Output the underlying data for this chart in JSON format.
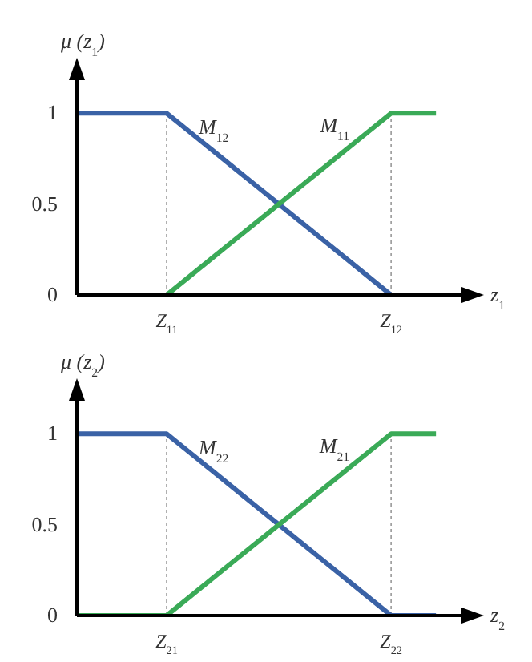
{
  "chart_data": [
    {
      "type": "line",
      "ylabel": "μ (z$_{1}$)",
      "xlabel": "z$_{1}$",
      "categories": [
        null,
        null,
        null,
        null,
        "Z$_{11}$",
        null,
        null,
        null,
        null,
        null,
        null,
        null,
        null,
        null,
        "Z$_{12}$",
        null,
        null
      ],
      "ylim": [
        0,
        1.2
      ],
      "yticks": [
        0,
        0.5,
        1
      ],
      "grid": false,
      "legend": false,
      "marker": "none",
      "line_style": "solid",
      "series": [
        {
          "name": "M$_{12}$",
          "color": "#3a62a6",
          "values": [
            1,
            1,
            1,
            1,
            1,
            0.9,
            0.8,
            0.7,
            0.6,
            0.5,
            0.4,
            0.3,
            0.2,
            0.1,
            0,
            0,
            0
          ]
        },
        {
          "name": "M$_{11}$",
          "color": "#3aaa57",
          "values": [
            0,
            0,
            0,
            0,
            0,
            0.1,
            0.2,
            0.3,
            0.4,
            0.5,
            0.6,
            0.7,
            0.8,
            0.9,
            1,
            1,
            1
          ]
        }
      ],
      "ref_lines": [
        {
          "axis": "x",
          "value": "Z$_{11}$",
          "color": "#999999",
          "line_style": "dotted"
        },
        {
          "axis": "x",
          "value": "Z$_{12}$",
          "color": "#999999",
          "line_style": "dotted"
        }
      ]
    },
    {
      "type": "line",
      "ylabel": "μ (z$_{2}$)",
      "xlabel": "z$_{2}$",
      "categories": [
        null,
        null,
        null,
        null,
        "Z$_{21}$",
        null,
        null,
        null,
        null,
        null,
        null,
        null,
        null,
        null,
        "Z$_{22}$",
        null,
        null
      ],
      "ylim": [
        0,
        1.2
      ],
      "yticks": [
        0,
        0.5,
        1
      ],
      "grid": false,
      "legend": false,
      "marker": "none",
      "line_style": "solid",
      "series": [
        {
          "name": "M$_{22}$",
          "color": "#3a62a6",
          "values": [
            1,
            1,
            1,
            1,
            1,
            0.9,
            0.8,
            0.7,
            0.6,
            0.5,
            0.4,
            0.3,
            0.2,
            0.1,
            0,
            0,
            0
          ]
        },
        {
          "name": "M$_{21}$",
          "color": "#3aaa57",
          "values": [
            0,
            0,
            0,
            0,
            0,
            0.1,
            0.2,
            0.3,
            0.4,
            0.5,
            0.6,
            0.7,
            0.8,
            0.9,
            1,
            1,
            1
          ]
        }
      ],
      "ref_lines": [
        {
          "axis": "x",
          "value": "Z$_{21}$",
          "color": "#999999",
          "line_style": "dotted"
        },
        {
          "axis": "x",
          "value": "Z$_{22}$",
          "color": "#999999",
          "line_style": "dotted"
        }
      ]
    }
  ]
}
